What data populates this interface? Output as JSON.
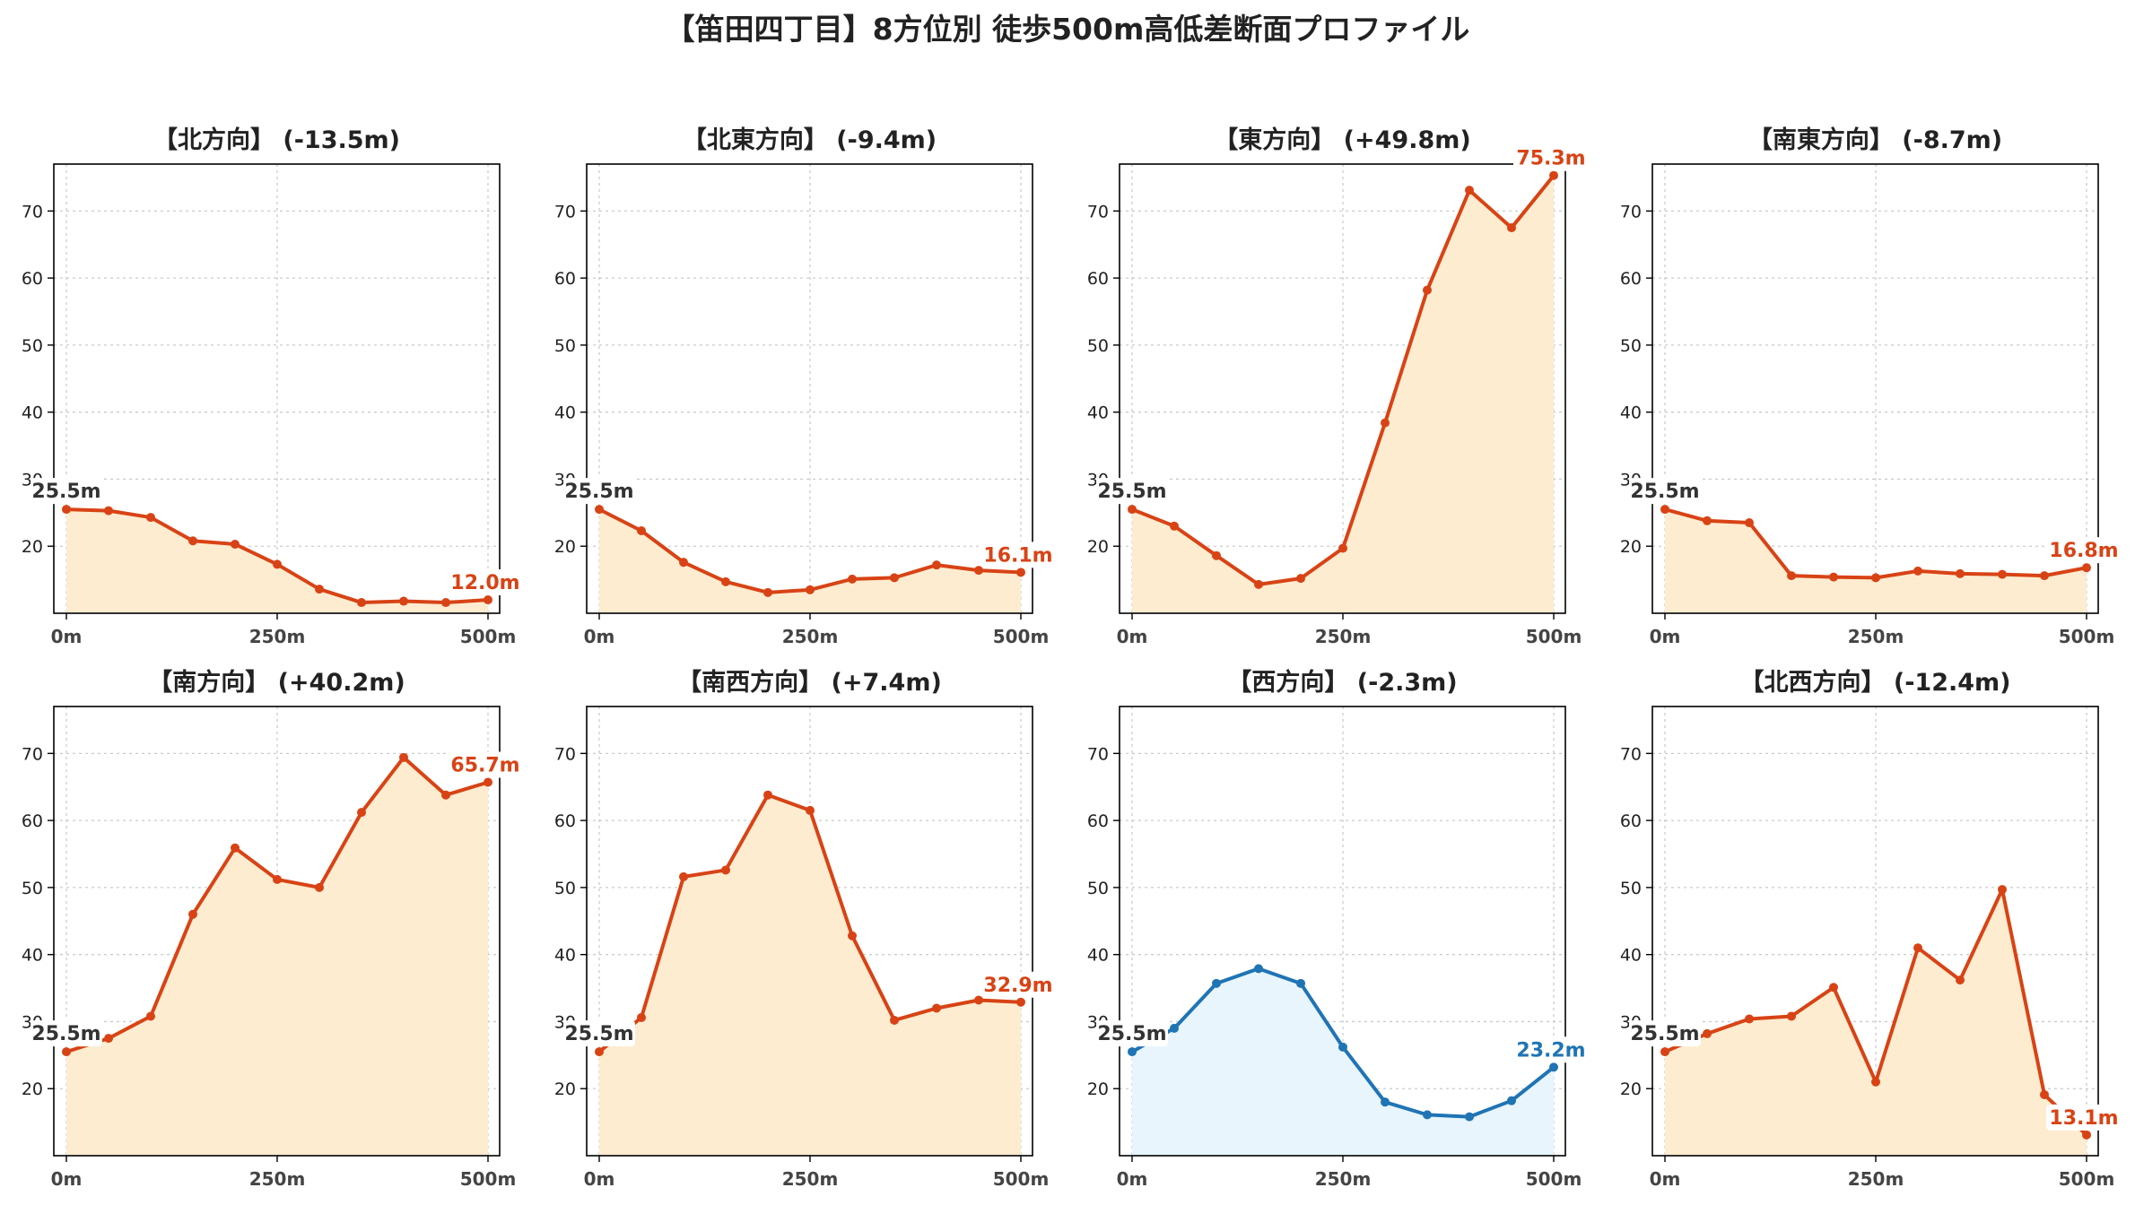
{
  "title": "【笛田四丁目】8方位別 徒歩500m高低差断面プロファイル",
  "chart_data": [
    {
      "type": "area",
      "title": "【北方向】 (-13.5m)",
      "x": [
        0,
        50,
        100,
        150,
        200,
        250,
        300,
        350,
        400,
        450,
        500
      ],
      "x_ticks": [
        "0m",
        "250m",
        "500m"
      ],
      "y_ticks": [
        20,
        30,
        40,
        50,
        60,
        70
      ],
      "ylim": [
        10,
        77
      ],
      "series": [
        {
          "values": [
            25.5,
            25.3,
            24.3,
            20.8,
            20.3,
            17.3,
            13.6,
            11.6,
            11.8,
            11.6,
            12.0
          ]
        }
      ],
      "start_label": "25.5m",
      "end_label": "12.0m",
      "color": "#d84315",
      "fill": "#feecd0",
      "grid": true
    },
    {
      "type": "area",
      "title": "【北東方向】 (-9.4m)",
      "x": [
        0,
        50,
        100,
        150,
        200,
        250,
        300,
        350,
        400,
        450,
        500
      ],
      "x_ticks": [
        "0m",
        "250m",
        "500m"
      ],
      "y_ticks": [
        20,
        30,
        40,
        50,
        60,
        70
      ],
      "ylim": [
        10,
        77
      ],
      "series": [
        {
          "values": [
            25.5,
            22.3,
            17.6,
            14.7,
            13.1,
            13.5,
            15.1,
            15.3,
            17.2,
            16.4,
            16.1
          ]
        }
      ],
      "start_label": "25.5m",
      "end_label": "16.1m",
      "color": "#d84315",
      "fill": "#feecd0",
      "grid": true
    },
    {
      "type": "area",
      "title": "【東方向】 (+49.8m)",
      "x": [
        0,
        50,
        100,
        150,
        200,
        250,
        300,
        350,
        400,
        450,
        500
      ],
      "x_ticks": [
        "0m",
        "250m",
        "500m"
      ],
      "y_ticks": [
        20,
        30,
        40,
        50,
        60,
        70
      ],
      "ylim": [
        10,
        77
      ],
      "series": [
        {
          "values": [
            25.5,
            23.0,
            18.6,
            14.3,
            15.2,
            19.7,
            38.4,
            58.2,
            73.1,
            67.5,
            75.3
          ]
        }
      ],
      "start_label": "25.5m",
      "end_label": "75.3m",
      "color": "#d84315",
      "fill": "#feecd0",
      "grid": true
    },
    {
      "type": "area",
      "title": "【南東方向】 (-8.7m)",
      "x": [
        0,
        50,
        100,
        150,
        200,
        250,
        300,
        350,
        400,
        450,
        500
      ],
      "x_ticks": [
        "0m",
        "250m",
        "500m"
      ],
      "y_ticks": [
        20,
        30,
        40,
        50,
        60,
        70
      ],
      "ylim": [
        10,
        77
      ],
      "series": [
        {
          "values": [
            25.5,
            23.8,
            23.5,
            15.6,
            15.4,
            15.3,
            16.3,
            15.9,
            15.8,
            15.6,
            16.8
          ]
        }
      ],
      "start_label": "25.5m",
      "end_label": "16.8m",
      "color": "#d84315",
      "fill": "#feecd0",
      "grid": true
    },
    {
      "type": "area",
      "title": "【南方向】 (+40.2m)",
      "x": [
        0,
        50,
        100,
        150,
        200,
        250,
        300,
        350,
        400,
        450,
        500
      ],
      "x_ticks": [
        "0m",
        "250m",
        "500m"
      ],
      "y_ticks": [
        20,
        30,
        40,
        50,
        60,
        70
      ],
      "ylim": [
        10,
        77
      ],
      "series": [
        {
          "values": [
            25.5,
            27.5,
            30.8,
            46.0,
            55.9,
            51.2,
            50.0,
            61.2,
            69.4,
            63.8,
            65.7
          ]
        }
      ],
      "start_label": "25.5m",
      "end_label": "65.7m",
      "color": "#d84315",
      "fill": "#feecd0",
      "grid": true
    },
    {
      "type": "area",
      "title": "【南西方向】 (+7.4m)",
      "x": [
        0,
        50,
        100,
        150,
        200,
        250,
        300,
        350,
        400,
        450,
        500
      ],
      "x_ticks": [
        "0m",
        "250m",
        "500m"
      ],
      "y_ticks": [
        20,
        30,
        40,
        50,
        60,
        70
      ],
      "ylim": [
        10,
        77
      ],
      "series": [
        {
          "values": [
            25.5,
            30.6,
            51.6,
            52.6,
            63.8,
            61.5,
            42.8,
            30.2,
            32.0,
            33.2,
            32.9
          ]
        }
      ],
      "start_label": "25.5m",
      "end_label": "32.9m",
      "color": "#d84315",
      "fill": "#feecd0",
      "grid": true
    },
    {
      "type": "area",
      "title": "【西方向】 (-2.3m)",
      "x": [
        0,
        50,
        100,
        150,
        200,
        250,
        300,
        350,
        400,
        450,
        500
      ],
      "x_ticks": [
        "0m",
        "250m",
        "500m"
      ],
      "y_ticks": [
        20,
        30,
        40,
        50,
        60,
        70
      ],
      "ylim": [
        10,
        77
      ],
      "series": [
        {
          "values": [
            25.5,
            29.0,
            35.7,
            37.9,
            35.7,
            26.2,
            18.0,
            16.1,
            15.8,
            18.2,
            23.2
          ]
        }
      ],
      "start_label": "25.5m",
      "end_label": "23.2m",
      "color": "#1f74b4",
      "fill": "#e8f5fc",
      "grid": true
    },
    {
      "type": "area",
      "title": "【北西方向】 (-12.4m)",
      "x": [
        0,
        50,
        100,
        150,
        200,
        250,
        300,
        350,
        400,
        450,
        500
      ],
      "x_ticks": [
        "0m",
        "250m",
        "500m"
      ],
      "y_ticks": [
        20,
        30,
        40,
        50,
        60,
        70
      ],
      "ylim": [
        10,
        77
      ],
      "series": [
        {
          "values": [
            25.5,
            28.2,
            30.4,
            30.8,
            35.1,
            21.0,
            41.0,
            36.2,
            49.7,
            19.1,
            13.1
          ]
        }
      ],
      "start_label": "25.5m",
      "end_label": "13.1m",
      "color": "#d84315",
      "fill": "#feecd0",
      "grid": true
    }
  ]
}
